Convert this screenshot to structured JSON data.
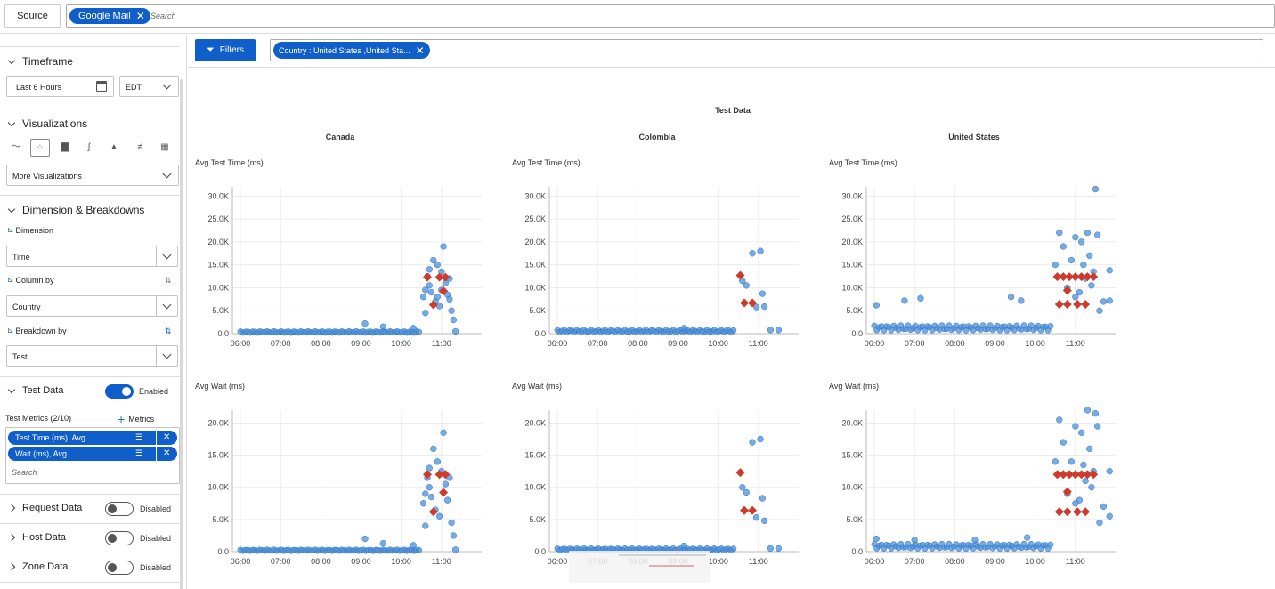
{
  "topbar": {
    "source_label": "Source",
    "search_pill": "Google Mail",
    "search_placeholder": "Search"
  },
  "sidebar": {
    "timeframe": {
      "title": "Timeframe",
      "range": "Last 6 Hours",
      "timezone": "EDT"
    },
    "visualizations": {
      "title": "Visualizations",
      "more": "More Visualizations"
    },
    "dimension_breakdowns": {
      "title": "Dimension & Breakdowns",
      "dimension_label": "Dimension",
      "dimension_value": "Time",
      "column_label": "Column by",
      "column_value": "Country",
      "breakdown_label": "Breakdown by",
      "breakdown_value": "Test"
    },
    "test_data": {
      "title": "Test Data",
      "state": "Enabled",
      "metrics_label": "Test Metrics (2/10)",
      "add_metrics": "Metrics",
      "metrics": [
        "Test Time (ms), Avg",
        "Wait (ms), Avg"
      ],
      "search_placeholder": "Search"
    },
    "request_data": {
      "title": "Request Data",
      "state": "Disabled"
    },
    "host_data": {
      "title": "Host Data",
      "state": "Disabled"
    },
    "zone_data": {
      "title": "Zone Data",
      "state": "Disabled"
    }
  },
  "main": {
    "filters_label": "Filters",
    "filter_pill": "Country : United States ,United Sta...",
    "add_icon": "plus-icon"
  },
  "colors": {
    "accent": "#0f5ec9",
    "scatter": "#4a8fd9",
    "marker": "#cc3b2b"
  },
  "chart_data": {
    "type": "scatter",
    "title": "Test Data",
    "columns": [
      "Canada",
      "Colombia",
      "United States"
    ],
    "x_ticks": [
      "06:00",
      "07:00",
      "08:00",
      "09:00",
      "10:00",
      "11:00"
    ],
    "rows": [
      {
        "ylabel": "Avg Test Time (ms)",
        "y_ticks": [
          "0.0",
          "5.0K",
          "10.0K",
          "15.0K",
          "20.0K",
          "25.0K",
          "30.0K"
        ],
        "ylim": [
          0,
          32000
        ]
      },
      {
        "ylabel": "Avg Wait (ms)",
        "y_ticks": [
          "0.0",
          "5.0K",
          "10.0K",
          "15.0K",
          "20.0K"
        ],
        "ylim": [
          0,
          22000
        ]
      }
    ],
    "panels": [
      {
        "column": "Canada",
        "row": 0,
        "baseline": {
          "from": 6.0,
          "to": 10.5,
          "value": 500
        },
        "points": [
          [
            9.1,
            2200
          ],
          [
            9.55,
            1500
          ],
          [
            10.3,
            1200
          ],
          [
            10.55,
            8000
          ],
          [
            10.6,
            9500
          ],
          [
            10.65,
            12500
          ],
          [
            10.7,
            14000
          ],
          [
            10.75,
            9000
          ],
          [
            10.8,
            16000
          ],
          [
            10.85,
            7000
          ],
          [
            10.9,
            15000
          ],
          [
            10.95,
            6000
          ],
          [
            11.0,
            13500
          ],
          [
            11.05,
            19000
          ],
          [
            11.1,
            11000
          ],
          [
            11.15,
            8500
          ],
          [
            11.2,
            12000
          ],
          [
            11.25,
            5000
          ],
          [
            11.3,
            3000
          ],
          [
            10.6,
            4500
          ],
          [
            10.7,
            10500
          ],
          [
            10.9,
            8000
          ],
          [
            11.0,
            9500
          ],
          [
            11.2,
            7500
          ],
          [
            11.35,
            500
          ]
        ],
        "markers": [
          [
            10.65,
            12300
          ],
          [
            10.8,
            6300
          ],
          [
            10.95,
            12300
          ],
          [
            11.1,
            12300
          ],
          [
            11.05,
            9300
          ]
        ]
      },
      {
        "column": "Colombia",
        "row": 0,
        "baseline": {
          "from": 6.0,
          "to": 10.4,
          "value": 800
        },
        "points": [
          [
            9.15,
            1200
          ],
          [
            10.6,
            11500
          ],
          [
            10.7,
            10500
          ],
          [
            10.85,
            17500
          ],
          [
            10.95,
            5800
          ],
          [
            11.05,
            18000
          ],
          [
            11.1,
            8700
          ],
          [
            11.15,
            5900
          ],
          [
            11.3,
            800
          ],
          [
            11.5,
            800
          ]
        ],
        "markers": [
          [
            10.55,
            12700
          ],
          [
            10.65,
            6700
          ],
          [
            10.85,
            6700
          ]
        ]
      },
      {
        "column": "United States",
        "row": 0,
        "baseline": {
          "from": 6.0,
          "to": 10.4,
          "value": 1800
        },
        "points": [
          [
            6.05,
            6200
          ],
          [
            6.75,
            7200
          ],
          [
            7.15,
            7700
          ],
          [
            9.4,
            8000
          ],
          [
            9.65,
            7200
          ],
          [
            10.6,
            22000
          ],
          [
            10.7,
            19000
          ],
          [
            10.9,
            16000
          ],
          [
            11.0,
            21000
          ],
          [
            11.1,
            9000
          ],
          [
            11.15,
            20000
          ],
          [
            11.2,
            15000
          ],
          [
            11.3,
            22000
          ],
          [
            11.35,
            17000
          ],
          [
            11.45,
            13500
          ],
          [
            11.5,
            31500
          ],
          [
            11.55,
            21500
          ],
          [
            11.7,
            7000
          ],
          [
            11.85,
            13800
          ],
          [
            11.85,
            7200
          ],
          [
            10.8,
            10000
          ],
          [
            11.0,
            8000
          ],
          [
            11.25,
            12000
          ],
          [
            11.4,
            10500
          ],
          [
            11.6,
            5000
          ],
          [
            10.5,
            15000
          ]
        ],
        "markers": [
          [
            10.55,
            12400
          ],
          [
            10.7,
            12400
          ],
          [
            10.85,
            12400
          ],
          [
            11.0,
            12400
          ],
          [
            11.15,
            12400
          ],
          [
            11.3,
            12400
          ],
          [
            11.45,
            12400
          ],
          [
            10.8,
            9400
          ],
          [
            10.6,
            6400
          ],
          [
            10.8,
            6400
          ],
          [
            11.05,
            6400
          ],
          [
            11.25,
            6400
          ]
        ]
      },
      {
        "column": "Canada",
        "row": 1,
        "baseline": {
          "from": 6.0,
          "to": 10.5,
          "value": 300
        },
        "points": [
          [
            9.1,
            2000
          ],
          [
            9.55,
            1300
          ],
          [
            10.3,
            1000
          ],
          [
            10.55,
            7500
          ],
          [
            10.6,
            9000
          ],
          [
            10.65,
            11500
          ],
          [
            10.7,
            13000
          ],
          [
            10.75,
            8500
          ],
          [
            10.8,
            16000
          ],
          [
            10.85,
            6500
          ],
          [
            10.9,
            14000
          ],
          [
            10.95,
            5500
          ],
          [
            11.0,
            12500
          ],
          [
            11.05,
            18500
          ],
          [
            11.1,
            10500
          ],
          [
            11.15,
            8000
          ],
          [
            11.2,
            11500
          ],
          [
            11.25,
            4500
          ],
          [
            11.3,
            2500
          ],
          [
            10.6,
            4000
          ],
          [
            10.7,
            10000
          ],
          [
            11.35,
            300
          ]
        ],
        "markers": [
          [
            10.65,
            12000
          ],
          [
            10.8,
            6200
          ],
          [
            10.95,
            12000
          ],
          [
            11.1,
            12000
          ],
          [
            11.05,
            9200
          ]
        ]
      },
      {
        "column": "Colombia",
        "row": 1,
        "baseline": {
          "from": 6.0,
          "to": 10.4,
          "value": 500
        },
        "points": [
          [
            9.15,
            900
          ],
          [
            10.6,
            10000
          ],
          [
            10.7,
            9200
          ],
          [
            10.85,
            17000
          ],
          [
            10.95,
            5300
          ],
          [
            11.05,
            17500
          ],
          [
            11.1,
            8300
          ],
          [
            11.15,
            4800
          ],
          [
            11.3,
            500
          ],
          [
            11.5,
            500
          ]
        ],
        "markers": [
          [
            10.55,
            12300
          ],
          [
            10.65,
            6400
          ],
          [
            10.85,
            6400
          ]
        ]
      },
      {
        "column": "United States",
        "row": 1,
        "baseline": {
          "from": 6.0,
          "to": 10.4,
          "value": 1200
        },
        "points": [
          [
            6.05,
            2000
          ],
          [
            7.0,
            1800
          ],
          [
            8.5,
            1800
          ],
          [
            9.8,
            2200
          ],
          [
            10.6,
            20500
          ],
          [
            10.7,
            17000
          ],
          [
            10.9,
            14000
          ],
          [
            11.0,
            19500
          ],
          [
            11.1,
            8000
          ],
          [
            11.15,
            18500
          ],
          [
            11.2,
            13500
          ],
          [
            11.3,
            22000
          ],
          [
            11.35,
            16000
          ],
          [
            11.45,
            12500
          ],
          [
            11.5,
            21500
          ],
          [
            11.55,
            19500
          ],
          [
            11.7,
            7000
          ],
          [
            11.85,
            12500
          ],
          [
            11.85,
            5500
          ],
          [
            10.8,
            9000
          ],
          [
            11.0,
            7500
          ],
          [
            11.25,
            11000
          ],
          [
            11.4,
            10000
          ],
          [
            11.6,
            4500
          ],
          [
            10.5,
            14000
          ]
        ],
        "markers": [
          [
            10.55,
            12000
          ],
          [
            10.7,
            12000
          ],
          [
            10.85,
            12000
          ],
          [
            11.0,
            12000
          ],
          [
            11.15,
            12000
          ],
          [
            11.3,
            12000
          ],
          [
            11.45,
            12000
          ],
          [
            10.8,
            9300
          ],
          [
            10.6,
            6200
          ],
          [
            10.8,
            6200
          ],
          [
            11.05,
            6200
          ],
          [
            11.25,
            6200
          ]
        ]
      }
    ]
  }
}
